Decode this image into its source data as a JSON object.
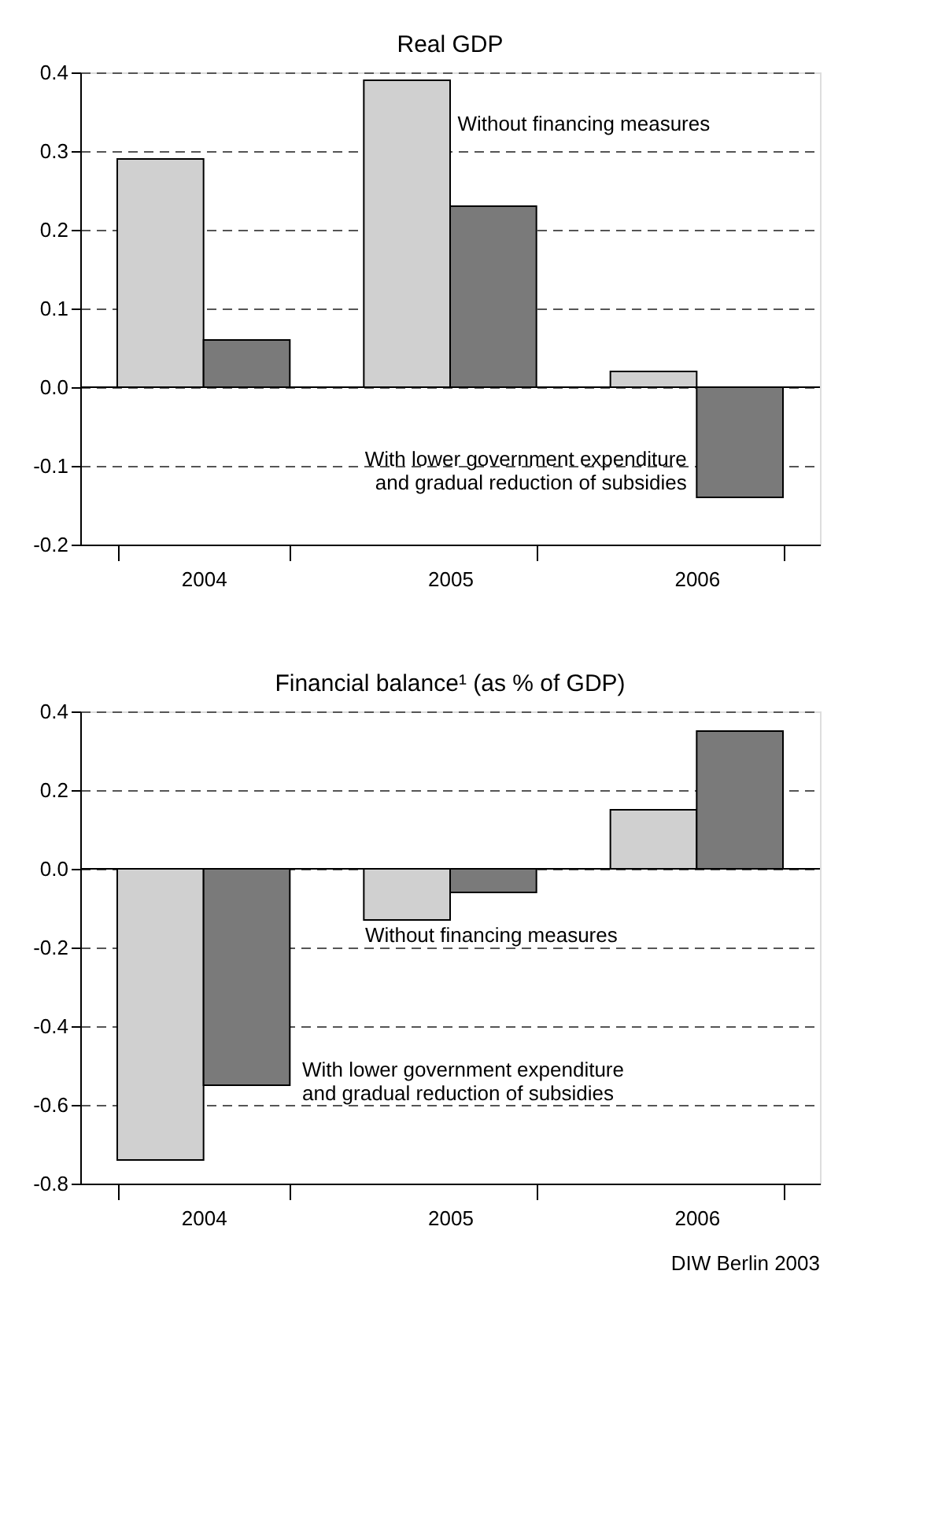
{
  "chart_data": [
    {
      "type": "bar",
      "title": "Real GDP",
      "categories": [
        "2004",
        "2005",
        "2006"
      ],
      "series": [
        {
          "name": "Without financing measures",
          "color": "#d0d0d0",
          "values": [
            0.29,
            0.39,
            0.02
          ]
        },
        {
          "name": "With lower government expenditure\nand gradual reduction of subsidies",
          "color": "#7a7a7a",
          "values": [
            0.06,
            0.23,
            -0.14
          ]
        }
      ],
      "ylim": [
        -0.2,
        0.4
      ],
      "yticks": [
        {
          "value": -0.2,
          "label": "-0.2"
        },
        {
          "value": -0.1,
          "label": "-0.1"
        },
        {
          "value": 0,
          "label": "0.0"
        },
        {
          "value": 0.1,
          "label": "0.1"
        },
        {
          "value": 0.2,
          "label": "0.2"
        },
        {
          "value": 0.3,
          "label": "0.3"
        },
        {
          "value": 0.4,
          "label": "0.4"
        }
      ],
      "grid": "y",
      "legend": false
    },
    {
      "type": "bar",
      "title": "Financial balance¹ (as % of GDP)",
      "categories": [
        "2004",
        "2005",
        "2006"
      ],
      "series": [
        {
          "name": "Without financing measures",
          "color": "#d0d0d0",
          "values": [
            -0.74,
            -0.13,
            0.15
          ]
        },
        {
          "name": "With lower government expenditure\nand gradual reduction of subsidies",
          "color": "#7a7a7a",
          "values": [
            -0.55,
            -0.06,
            0.35
          ]
        }
      ],
      "ylim": [
        -0.8,
        0.4
      ],
      "yticks": [
        {
          "value": -0.8,
          "label": "-0.8"
        },
        {
          "value": -0.6,
          "label": "-0.6"
        },
        {
          "value": -0.4,
          "label": "-0.4"
        },
        {
          "value": -0.2,
          "label": "-0.2"
        },
        {
          "value": 0,
          "label": "0.0"
        },
        {
          "value": 0.2,
          "label": "0.2"
        },
        {
          "value": 0.4,
          "label": "0.4"
        }
      ],
      "grid": "y",
      "legend": false,
      "annotations": [
        "DIW Berlin 2003"
      ]
    }
  ]
}
